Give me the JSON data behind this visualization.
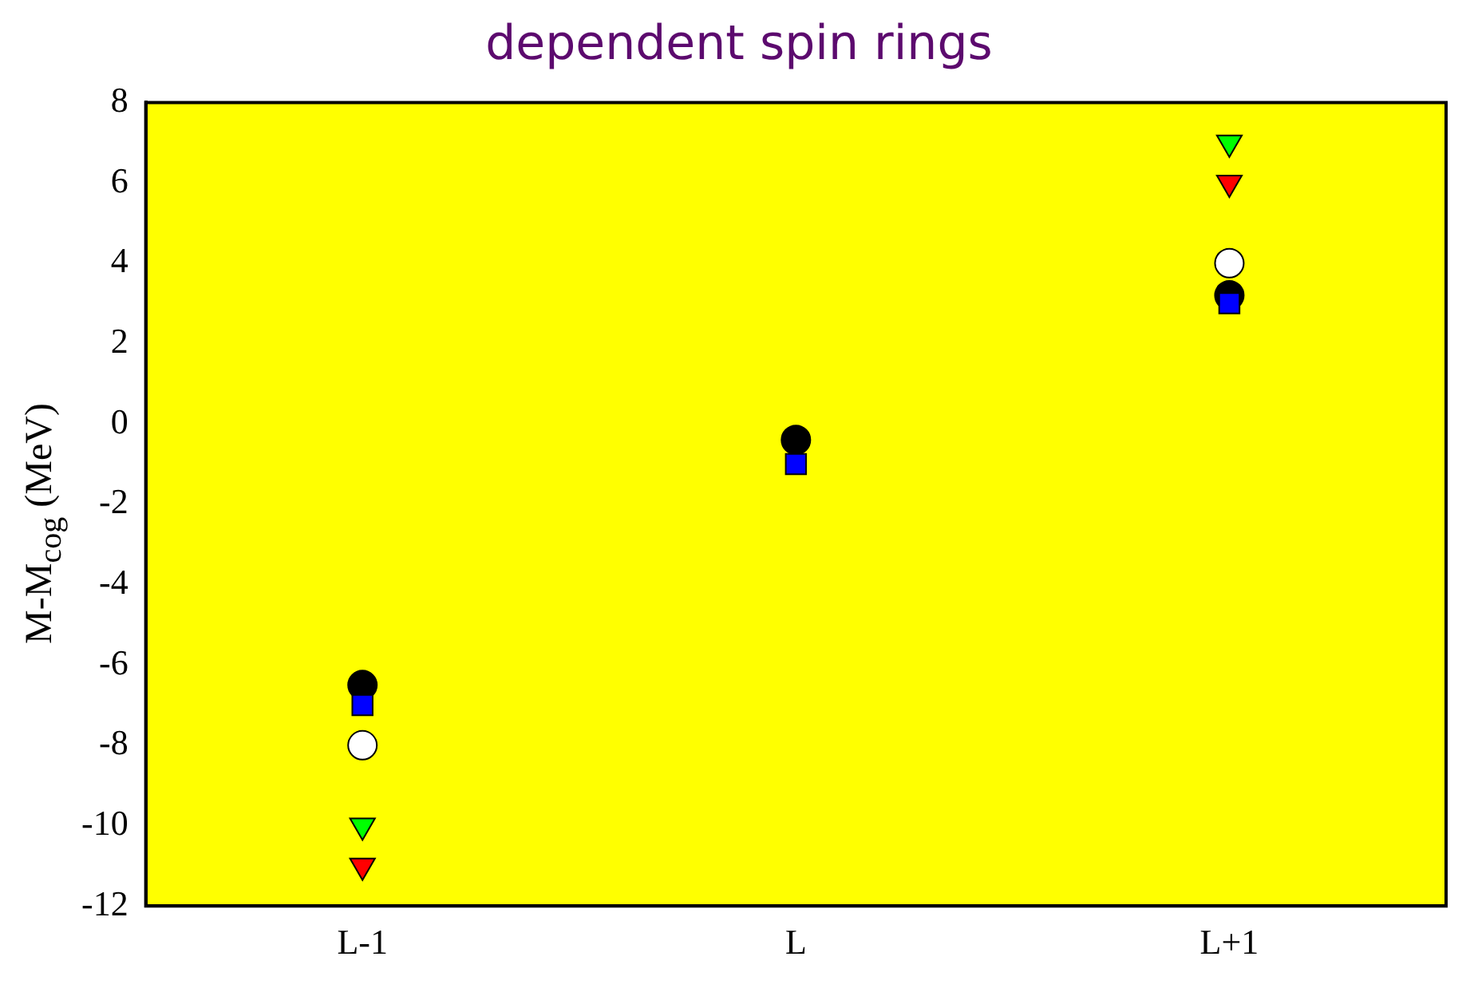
{
  "chart_data": {
    "type": "scatter",
    "title": "dependent spin rings",
    "ylabel": "M-M$_{cog}$ (MeV)",
    "categories": [
      "L-1",
      "L",
      "L+1"
    ],
    "series": [
      {
        "color": "#000000",
        "marker": "circle",
        "values": [
          -6.5,
          -0.4,
          3.2
        ]
      },
      {
        "color": "#0000ff",
        "marker": "square",
        "values": [
          -7,
          -1,
          3
        ]
      },
      {
        "color": "#ffffff",
        "marker": "circle",
        "values": [
          -8,
          null,
          4
        ]
      },
      {
        "color": "#00ff00",
        "marker": "triangle",
        "values": [
          -10,
          null,
          7
        ]
      },
      {
        "color": "#ff0000",
        "marker": "triangle",
        "values": [
          -11,
          null,
          6
        ]
      }
    ],
    "ylim": [
      -12,
      8
    ],
    "yticks": [
      -12,
      -10,
      -8,
      -6,
      -4,
      -2,
      0,
      2,
      4,
      6,
      8
    ],
    "grid": false,
    "legend": false
  }
}
